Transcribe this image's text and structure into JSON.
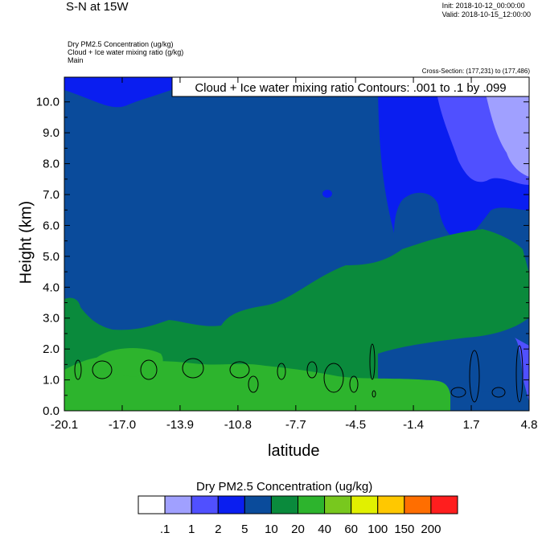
{
  "header": {
    "title": "S-N at 15W",
    "init": "Init: 2018-10-12_00:00:00",
    "valid": "Valid: 2018-10-15_12:00:00",
    "fields": [
      "Dry PM2.5 Concentration   (ug/kg)",
      "Cloud + Ice water mixing ratio   (g/kg)",
      "Main"
    ],
    "cross_section": "Cross-Section: (177,231) to (177,486)"
  },
  "chart_data": {
    "type": "heatmap",
    "xlabel": "latitude",
    "ylabel": "Height (km)",
    "x_ticks": [
      "-20.1",
      "-17.0",
      "-13.9",
      "-10.8",
      "-7.7",
      "-4.5",
      "-1.4",
      "1.7",
      "4.8"
    ],
    "y_ticks": [
      "0.0",
      "1.0",
      "2.0",
      "3.0",
      "4.0",
      "5.0",
      "6.0",
      "7.0",
      "8.0",
      "9.0",
      "10.0"
    ],
    "xlim": [
      -20.1,
      4.8
    ],
    "ylim": [
      0.0,
      10.8
    ],
    "contour_label": "Cloud + Ice water mixing ratio Contours: .001 to .1 by .099",
    "colorbar": {
      "title": "Dry PM2.5 Concentration  (ug/kg)",
      "levels": [
        ".1",
        "1",
        "2",
        "5",
        "10",
        "20",
        "40",
        "60",
        "100",
        "150",
        "200"
      ],
      "colors": [
        "#ffffff",
        "#a0a0ff",
        "#5050ff",
        "#0a1ef0",
        "#0a4b9b",
        "#0a8a3c",
        "#2db42d",
        "#78c81e",
        "#e1f000",
        "#ffc800",
        "#ff6e00",
        "#ff1e1e"
      ]
    }
  }
}
